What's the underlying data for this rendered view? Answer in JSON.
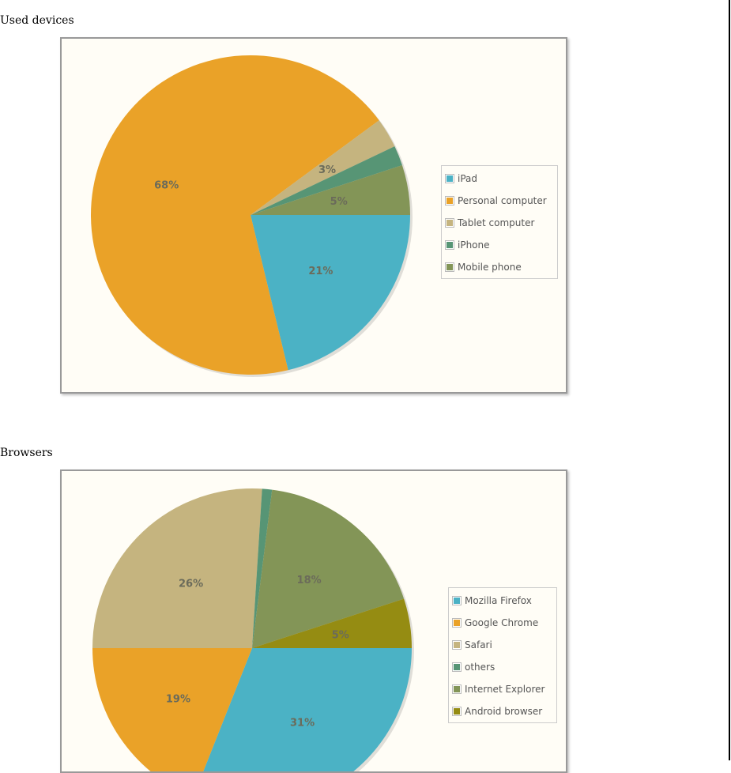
{
  "chart_data": [
    {
      "type": "pie",
      "title": "Used devices",
      "legend_position": "right",
      "start_angle_deg": 0,
      "direction": "clockwise",
      "slices": [
        {
          "label": "iPad",
          "value": 21,
          "display": "21%",
          "color": "#4bb2c5"
        },
        {
          "label": "Personal computer",
          "value": 68,
          "display": "68%",
          "color": "#eaa228"
        },
        {
          "label": "Tablet computer",
          "value": 3,
          "display": "3%",
          "color": "#c5b47f"
        },
        {
          "label": "iPhone",
          "value": 2,
          "display": "",
          "color": "#579575"
        },
        {
          "label": "Mobile phone",
          "value": 5,
          "display": "5%",
          "color": "#839557"
        }
      ]
    },
    {
      "type": "pie",
      "title": "Browsers",
      "legend_position": "right",
      "start_angle_deg": 0,
      "direction": "clockwise",
      "slices": [
        {
          "label": "Mozilla Firefox",
          "value": 31,
          "display": "31%",
          "color": "#4bb2c5"
        },
        {
          "label": "Google Chrome",
          "value": 19,
          "display": "19%",
          "color": "#eaa228"
        },
        {
          "label": "Safari",
          "value": 26,
          "display": "26%",
          "color": "#c5b47f"
        },
        {
          "label": "others",
          "value": 1,
          "display": "",
          "color": "#579575"
        },
        {
          "label": "Internet Explorer",
          "value": 18,
          "display": "18%",
          "color": "#839557"
        },
        {
          "label": "Android browser",
          "value": 5,
          "display": "5%",
          "color": "#958c12"
        }
      ]
    }
  ]
}
